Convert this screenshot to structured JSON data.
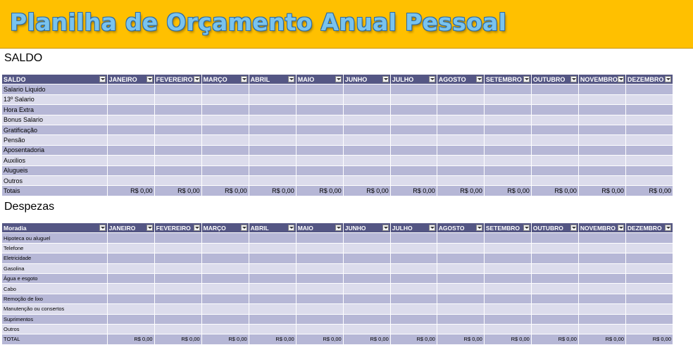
{
  "banner": {
    "title": "Planilha de Orçamento Anual Pessoal"
  },
  "saldo": {
    "section_title": "SALDO",
    "first_header": "SALDO",
    "months": [
      "JANEIRO",
      "FEVEREIRO",
      "MARÇO",
      "ABRIL",
      "MAIO",
      "JUNHO",
      "JULHO",
      "AGOSTO",
      "SETEMBRO",
      "OUTUBRO",
      "NOVEMBRO",
      "DEZEMBRO"
    ],
    "rows": [
      "Salario Liquido",
      "13º Salario",
      "Hora Extra",
      "Bonus Salario",
      "Gratificação",
      "Pensão",
      "Aposentadoria",
      "Auxilios",
      "Alugueis",
      "Outros"
    ],
    "total_label": "Totais",
    "totals": [
      "R$ 0,00",
      "R$ 0,00",
      "R$ 0,00",
      "R$ 0,00",
      "R$ 0,00",
      "R$ 0,00",
      "R$ 0,00",
      "R$ 0,00",
      "R$ 0,00",
      "R$ 0,00",
      "R$ 0,00",
      "R$ 0,00"
    ]
  },
  "despezas": {
    "section_title": "Despezas",
    "first_header": "Moradia",
    "months": [
      "JANEIRO",
      "FEVEREIRO",
      "MARÇO",
      "ABRIL",
      "MAIO",
      "JUNHO",
      "JULHO",
      "AGOSTO",
      "SETEMBRO",
      "OUTUBRO",
      "NOVEMBRO",
      "DEZEMBRO"
    ],
    "rows": [
      "Hipoteca ou aluguel",
      "Telefone",
      "Eletricidade",
      "Gasolina",
      "Água e esgoto",
      "Cabo",
      "Remoção de lixo",
      "Manutenção ou consertos",
      "Suprimentos",
      "Outros"
    ],
    "total_label": "TOTAL",
    "totals": [
      "R$ 0,00",
      "R$ 0,00",
      "R$ 0,00",
      "R$ 0,00",
      "R$ 0,00",
      "R$ 0,00",
      "R$ 0,00",
      "R$ 0,00",
      "R$ 0,00",
      "R$ 0,00",
      "R$ 0,00",
      "R$ 0,00"
    ]
  },
  "colors": {
    "banner": "#ffc000",
    "header": "#545684",
    "band_dark": "#b6b7d6",
    "band_light": "#dcdcec",
    "title_fill": "#79c3ee"
  }
}
